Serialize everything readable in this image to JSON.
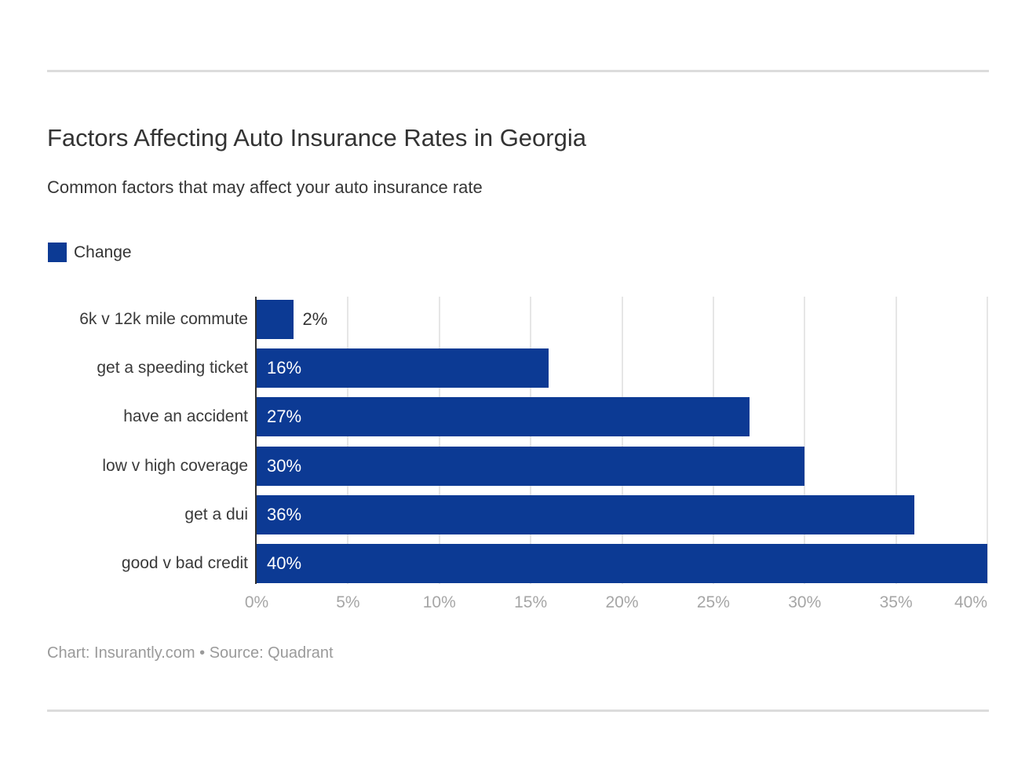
{
  "header": {
    "title": "Factors Affecting Auto Insurance Rates in Georgia",
    "subtitle": "Common factors that may affect your auto insurance rate"
  },
  "legend": {
    "label": "Change",
    "swatch_color": "#0c3a94"
  },
  "chart_data": {
    "type": "bar",
    "orientation": "horizontal",
    "title": "Factors Affecting Auto Insurance Rates in Georgia",
    "subtitle": "Common factors that may affect your auto insurance rate",
    "series_name": "Change",
    "categories": [
      "6k v 12k mile commute",
      "get a speeding ticket",
      "have an accident",
      "low v high coverage",
      "get a dui",
      "good v bad credit"
    ],
    "values": [
      2,
      16,
      27,
      30,
      36,
      40
    ],
    "value_labels": [
      "2%",
      "16%",
      "27%",
      "30%",
      "36%",
      "40%"
    ],
    "xlim": [
      0,
      40
    ],
    "x_tick_values": [
      0,
      5,
      10,
      15,
      20,
      25,
      30,
      35,
      40
    ],
    "x_tick_labels": [
      "0%",
      "5%",
      "10%",
      "15%",
      "20%",
      "25%",
      "30%",
      "35%",
      "40%"
    ],
    "grid": true,
    "legend_position": "top-left",
    "bar_color": "#0c3a94",
    "gridline_color": "#e6e6e6",
    "axis_line_color": "#2f2f2f",
    "tick_label_color": "#a6a6a6"
  },
  "footer": {
    "credit": "Chart: Insurantly.com • Source: Quadrant"
  }
}
